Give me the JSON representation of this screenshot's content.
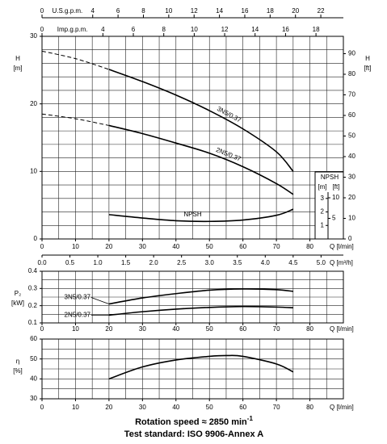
{
  "chart_data": [
    {
      "type": "line",
      "y_label": "H",
      "y_unit": "[m]",
      "y2_label": "H",
      "y2_unit": "[ft]",
      "x_label": "Q [l/min]",
      "xlim": [
        0,
        90
      ],
      "xticks": [
        0,
        10,
        20,
        30,
        40,
        50,
        60,
        70,
        80
      ],
      "xgrid": [
        0,
        5,
        10,
        15,
        20,
        25,
        30,
        35,
        40,
        45,
        50,
        55,
        60,
        65,
        70,
        75,
        80,
        85,
        90
      ],
      "ylim": [
        0,
        30
      ],
      "yticks": [
        0,
        10,
        20,
        30
      ],
      "ygrid": [
        0,
        2,
        4,
        6,
        8,
        10,
        12,
        14,
        16,
        18,
        20,
        22,
        24,
        26,
        28,
        30
      ],
      "y2lim": [
        0,
        98.43
      ],
      "y2ticks": [
        0,
        10,
        20,
        30,
        40,
        50,
        60,
        70,
        80,
        90
      ],
      "grid": true,
      "top_axes": [
        {
          "label": "U.S.g.p.m.",
          "lim": [
            0,
            23.78
          ],
          "ticks": [
            0,
            4,
            6,
            8,
            10,
            12,
            14,
            16,
            18,
            20,
            22
          ]
        },
        {
          "label": "Imp.g.p.m.",
          "lim": [
            0,
            19.8
          ],
          "ticks": [
            0,
            4,
            6,
            8,
            10,
            12,
            14,
            16,
            18
          ]
        }
      ],
      "bottom_axis": {
        "label": "Q [m³/h]",
        "lim": [
          0,
          5.4
        ],
        "ticks": [
          {
            "value": 0,
            "label": "0.0"
          },
          0.5,
          {
            "value": 1,
            "label": "1.0"
          },
          1.5,
          {
            "value": 2,
            "label": "2.0"
          },
          2.5,
          {
            "value": 3,
            "label": "3.0"
          },
          3.5,
          {
            "value": 4,
            "label": "4.0"
          },
          4.5,
          {
            "value": 5,
            "label": "5.0"
          }
        ]
      },
      "npsh_axis": {
        "title": "NPSH",
        "unit": "[m]",
        "unit2": "[ft]",
        "lim": [
          0,
          15
        ],
        "ticks": [
          1,
          2,
          3
        ],
        "lim2": [
          0,
          49.21
        ],
        "ticks2": [
          5,
          10
        ]
      },
      "series": [
        {
          "name": "3N5/0.37",
          "color": "#000000",
          "x": [
            20,
            30,
            40,
            50,
            60,
            70,
            75
          ],
          "values": [
            25.1,
            23.3,
            21.3,
            19.0,
            16.3,
            12.9,
            10.0
          ],
          "dashed_x": [
            0,
            10,
            20
          ],
          "dashed_values": [
            27.8,
            26.7,
            25.1
          ]
        },
        {
          "name": "2N5/0.37",
          "color": "#000000",
          "x": [
            20,
            30,
            40,
            50,
            60,
            70,
            75
          ],
          "values": [
            16.8,
            15.6,
            14.2,
            12.7,
            10.7,
            8.2,
            6.6
          ],
          "dashed_x": [
            0,
            10,
            20
          ],
          "dashed_values": [
            18.5,
            17.8,
            16.8
          ]
        },
        {
          "name": "NPSH",
          "color": "#000000",
          "axis": "y3",
          "x": [
            20,
            30,
            40,
            50,
            60,
            70,
            75
          ],
          "values": [
            1.8,
            1.55,
            1.35,
            1.3,
            1.4,
            1.75,
            2.2
          ]
        }
      ]
    },
    {
      "type": "line",
      "y_label": "P₂",
      "y_unit": "[kW]",
      "x_label": "Q [l/min]",
      "xlim": [
        0,
        90
      ],
      "xticks": [
        0,
        10,
        20,
        30,
        40,
        50,
        60,
        70,
        80
      ],
      "xgrid": [
        0,
        5,
        10,
        15,
        20,
        25,
        30,
        35,
        40,
        45,
        50,
        55,
        60,
        65,
        70,
        75,
        80,
        85,
        90
      ],
      "ylim": [
        0.1,
        0.4
      ],
      "yticks": [
        0.1,
        0.2,
        0.3,
        0.4
      ],
      "ygrid": [
        0.1,
        0.15,
        0.2,
        0.25,
        0.3,
        0.35,
        0.4
      ],
      "grid": true,
      "series": [
        {
          "name": "3N5/0.37",
          "color": "#000000",
          "x": [
            20,
            30,
            40,
            50,
            60,
            70,
            75
          ],
          "values": [
            0.21,
            0.245,
            0.27,
            0.29,
            0.297,
            0.293,
            0.283
          ]
        },
        {
          "name": "2N5/0.37",
          "color": "#000000",
          "x": [
            20,
            30,
            40,
            50,
            60,
            70,
            75
          ],
          "values": [
            0.145,
            0.165,
            0.18,
            0.19,
            0.195,
            0.192,
            0.188
          ]
        }
      ]
    },
    {
      "type": "line",
      "y_label": "η",
      "y_unit": "[%]",
      "x_label": "Q [l/min]",
      "xlim": [
        0,
        90
      ],
      "xticks": [
        0,
        10,
        20,
        30,
        40,
        50,
        60,
        70,
        80
      ],
      "xgrid": [
        0,
        5,
        10,
        15,
        20,
        25,
        30,
        35,
        40,
        45,
        50,
        55,
        60,
        65,
        70,
        75,
        80,
        85,
        90
      ],
      "ylim": [
        30,
        60
      ],
      "yticks": [
        30,
        40,
        50,
        60
      ],
      "ygrid": [
        30,
        35,
        40,
        45,
        50,
        55,
        60
      ],
      "grid": true,
      "series": [
        {
          "color": "#000000",
          "x": [
            20,
            30,
            40,
            50,
            55,
            60,
            70,
            75
          ],
          "values": [
            40,
            46,
            49.5,
            51.3,
            51.7,
            51.3,
            47.5,
            43.5
          ]
        }
      ]
    }
  ],
  "footer": {
    "rotation_speed": "Rotation speed ≈ 2850 min",
    "rotation_speed_exponent": "-1",
    "test_standard": "Test standard: ISO 9906-Annex A"
  }
}
